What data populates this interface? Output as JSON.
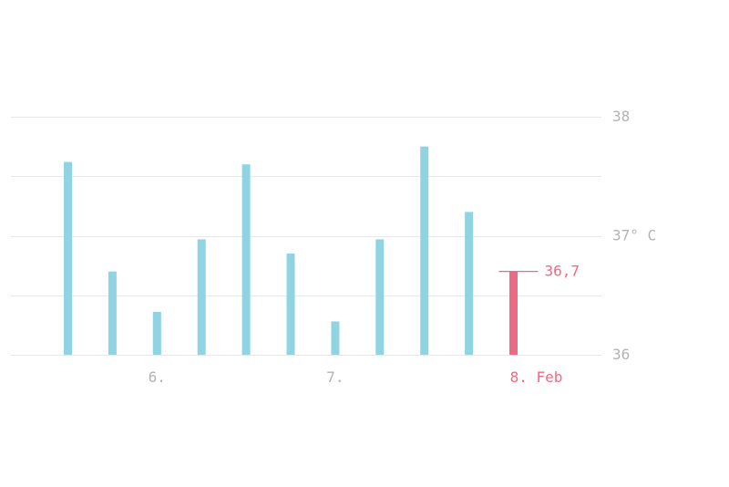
{
  "chart_data": {
    "type": "bar",
    "unit": "°C",
    "ylim": [
      36,
      38
    ],
    "y_ticks": [
      {
        "value": 38,
        "label": "38"
      },
      {
        "value": 37,
        "label": "37° C"
      },
      {
        "value": 36,
        "label": "36"
      }
    ],
    "minor_gridlines": [
      37.5,
      36.5
    ],
    "values": [
      37.62,
      36.7,
      36.36,
      36.97,
      37.6,
      36.85,
      36.28,
      36.97,
      37.75,
      37.2,
      36.7
    ],
    "x_tick_labels": [
      {
        "after_bar_index": 1,
        "label": "6."
      },
      {
        "after_bar_index": 5,
        "label": "7."
      },
      {
        "after_bar_index": 10,
        "label": "8. Feb"
      }
    ],
    "highlight": {
      "index": 10,
      "label": "36,7"
    },
    "colors": {
      "bar": "#90d4e4",
      "highlight": "#ec6b84",
      "grid": "#e6e8ec",
      "tick_text": "#b3b3b3"
    }
  }
}
